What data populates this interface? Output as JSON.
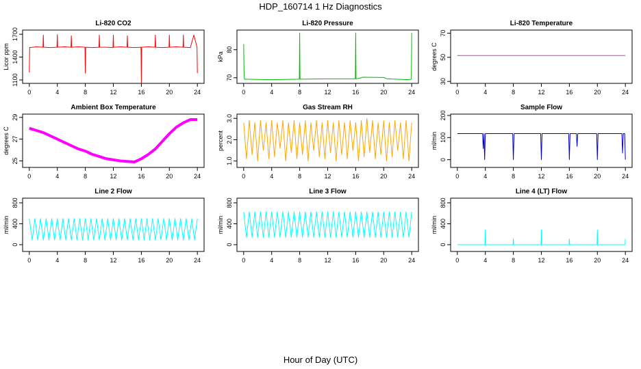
{
  "title": "HDP_160714  1 Hz Diagnostics",
  "xlabel": "Hour of Day (UTC)",
  "chart_data": [
    {
      "type": "line",
      "title": "Li-820 CO2",
      "ylabel": "Licor ppm",
      "color": "#ff0000",
      "xlim": [
        -0.96,
        24.96
      ],
      "xticks": [
        0,
        4,
        8,
        12,
        16,
        20,
        24
      ],
      "ylim": [
        1055,
        1755
      ],
      "yticks": [
        1100,
        1400,
        1700
      ],
      "x": [
        0,
        0.05,
        0.1,
        1,
        1.95,
        2,
        2.05,
        3,
        3.95,
        4,
        4.05,
        5,
        5.95,
        6,
        6.05,
        7,
        7.95,
        8,
        8.05,
        9,
        9.95,
        10,
        10.05,
        11,
        11.95,
        12,
        12.05,
        13,
        13.95,
        14,
        14.05,
        15,
        15.95,
        16,
        16.05,
        17,
        17.95,
        18,
        18.05,
        19,
        19.95,
        20,
        20.05,
        21,
        21.95,
        22,
        22.05,
        23,
        23.5,
        23.95,
        24
      ],
      "values": [
        1200,
        1530,
        1525,
        1535,
        1530,
        1690,
        1530,
        1525,
        1530,
        1695,
        1530,
        1535,
        1530,
        1680,
        1530,
        1535,
        1530,
        1190,
        1530,
        1525,
        1530,
        1690,
        1530,
        1530,
        1525,
        1690,
        1530,
        1535,
        1530,
        1680,
        1530,
        1525,
        1530,
        1060,
        1530,
        1535,
        1530,
        1690,
        1530,
        1525,
        1530,
        1690,
        1530,
        1535,
        1530,
        1690,
        1530,
        1525,
        1690,
        1530,
        1190
      ]
    },
    {
      "type": "line",
      "title": "Li-820 Pressure",
      "ylabel": "kPa",
      "color": "#00bb00",
      "xlim": [
        -0.96,
        24.96
      ],
      "xticks": [
        0,
        4,
        8,
        12,
        16,
        20,
        24
      ],
      "ylim": [
        68,
        87
      ],
      "yticks": [
        70,
        80
      ],
      "x": [
        0,
        0.05,
        0.1,
        0.3,
        4,
        7.95,
        8,
        8.05,
        12,
        15.95,
        16,
        16.05,
        16.5,
        17,
        20,
        20.5,
        23.5,
        23.95,
        24
      ],
      "values": [
        82,
        72,
        69.5,
        69.5,
        69.3,
        69.5,
        86,
        69.5,
        69.6,
        69.6,
        86,
        69.6,
        69.8,
        70.2,
        70.1,
        69.6,
        69.3,
        69.5,
        86
      ]
    },
    {
      "type": "line",
      "title": "Li-820 Temperature",
      "ylabel": "degrees C",
      "color": "#cc33cc",
      "xlim": [
        -0.96,
        24.96
      ],
      "xticks": [
        0,
        4,
        8,
        12,
        16,
        20,
        24
      ],
      "ylim": [
        28.4,
        72.6
      ],
      "yticks": [
        30,
        50,
        70
      ],
      "x": [
        0,
        24
      ],
      "values": [
        51.5,
        51.5
      ]
    },
    {
      "type": "line",
      "title": "Ambient Box Temperature",
      "ylabel": "degrees C",
      "color": "#ff00ff",
      "xlim": [
        -0.96,
        24.96
      ],
      "xticks": [
        0,
        4,
        8,
        12,
        16,
        20,
        24
      ],
      "ylim": [
        24.4,
        29.3
      ],
      "yticks": [
        25,
        27,
        29
      ],
      "x": [
        0,
        1,
        2,
        3,
        4,
        5,
        6,
        7,
        8,
        9,
        10,
        11,
        12,
        13,
        14,
        15,
        16,
        17,
        18,
        19,
        20,
        21,
        22,
        23,
        24
      ],
      "values": [
        28.0,
        27.8,
        27.6,
        27.3,
        27.0,
        26.7,
        26.4,
        26.1,
        25.9,
        25.6,
        25.4,
        25.2,
        25.1,
        25.0,
        24.95,
        24.9,
        25.2,
        25.6,
        26.1,
        26.8,
        27.5,
        28.1,
        28.5,
        28.8,
        28.8
      ]
    },
    {
      "type": "line",
      "title": "Gas Stream RH",
      "ylabel": "percent",
      "color": "#ffa500",
      "xlim": [
        -0.96,
        24.96
      ],
      "xticks": [
        0,
        4,
        8,
        12,
        16,
        20,
        24
      ],
      "ylim": [
        0.7,
        3.2
      ],
      "yticks": [
        {
          "value": 1,
          "label": "1.0"
        },
        {
          "value": 2,
          "label": "2.0"
        },
        {
          "value": 3,
          "label": "3.0"
        }
      ],
      "x": [
        0,
        0.4,
        0.8,
        1.2,
        1.6,
        2,
        2.4,
        2.8,
        3.2,
        3.6,
        4,
        4.4,
        4.8,
        5.2,
        5.6,
        6,
        6.4,
        6.8,
        7.2,
        7.6,
        8,
        8.4,
        8.8,
        9.2,
        9.6,
        10,
        10.4,
        10.8,
        11.2,
        11.6,
        12,
        12.4,
        12.8,
        13.2,
        13.6,
        14,
        14.4,
        14.8,
        15.2,
        15.6,
        16,
        16.4,
        16.8,
        17.2,
        17.6,
        18,
        18.4,
        18.8,
        19.2,
        19.6,
        20,
        20.4,
        20.8,
        21.2,
        21.6,
        22,
        22.4,
        22.8,
        23.2,
        23.6,
        24
      ],
      "values": [
        2.8,
        1.1,
        2.9,
        1.3,
        2.8,
        1.0,
        2.9,
        1.5,
        2.8,
        1.1,
        2.9,
        1.2,
        2.8,
        1.6,
        2.9,
        1.0,
        2.8,
        1.4,
        2.9,
        1.1,
        2.8,
        1.3,
        2.9,
        1.0,
        2.8,
        1.5,
        2.9,
        1.2,
        2.8,
        1.1,
        2.9,
        1.4,
        2.8,
        1.0,
        2.9,
        1.3,
        2.8,
        1.1,
        2.9,
        1.5,
        2.8,
        1.0,
        2.9,
        1.2,
        3.0,
        1.4,
        2.9,
        1.1,
        2.8,
        1.3,
        2.9,
        1.0,
        2.8,
        1.2,
        2.9,
        1.5,
        2.8,
        1.1,
        2.9,
        1.0,
        2.8
      ]
    },
    {
      "type": "line",
      "title": "Sample Flow",
      "ylabel": "ml/min",
      "color": "#0000cc",
      "xlim": [
        -0.96,
        24.96
      ],
      "xticks": [
        0,
        4,
        8,
        12,
        16,
        20,
        24
      ],
      "ylim": [
        -35,
        206
      ],
      "yticks": [
        0,
        100,
        200
      ],
      "x": [
        0,
        3.6,
        3.7,
        3.8,
        3.9,
        4,
        4.1,
        7.9,
        8,
        8.1,
        11.9,
        12,
        12.1,
        15.9,
        16,
        16.1,
        17,
        17.1,
        17.2,
        19.9,
        20,
        20.1,
        23.5,
        23.6,
        23.7,
        23.9,
        24
      ],
      "values": [
        118,
        118,
        50,
        118,
        0,
        118,
        118,
        118,
        0,
        118,
        118,
        0,
        118,
        118,
        0,
        118,
        118,
        60,
        118,
        118,
        0,
        118,
        118,
        30,
        118,
        118,
        0
      ]
    },
    {
      "type": "line",
      "title": "Line 2 Flow",
      "ylabel": "ml/min",
      "color": "#00ffff",
      "xlim": [
        -0.96,
        24.96
      ],
      "xticks": [
        0,
        4,
        8,
        12,
        16,
        20,
        24
      ],
      "ylim": [
        -130,
        890
      ],
      "yticks": [
        0,
        400,
        800
      ],
      "x": [
        0,
        0.4,
        0.8,
        1.2,
        1.6,
        2,
        2.4,
        2.8,
        3.2,
        3.6,
        4,
        4.4,
        4.8,
        5.2,
        5.6,
        6,
        6.4,
        6.8,
        7.2,
        7.6,
        8,
        8.4,
        8.8,
        9.2,
        9.6,
        10,
        10.4,
        10.8,
        11.2,
        11.6,
        12,
        12.4,
        12.8,
        13.2,
        13.6,
        14,
        14.4,
        14.8,
        15.2,
        15.6,
        16,
        16.4,
        16.8,
        17.2,
        17.6,
        18,
        18.4,
        18.8,
        19.2,
        19.6,
        20,
        20.4,
        20.8,
        21.2,
        21.6,
        22,
        22.4,
        22.8,
        23.2,
        23.6,
        24
      ],
      "values": [
        500,
        90,
        500,
        90,
        500,
        90,
        500,
        90,
        500,
        90,
        500,
        90,
        500,
        90,
        500,
        90,
        500,
        90,
        500,
        90,
        500,
        90,
        500,
        90,
        500,
        90,
        500,
        90,
        500,
        90,
        500,
        90,
        500,
        90,
        500,
        90,
        500,
        90,
        500,
        90,
        500,
        90,
        500,
        90,
        500,
        90,
        500,
        90,
        500,
        90,
        500,
        90,
        500,
        90,
        500,
        90,
        500,
        90,
        500,
        90,
        500
      ]
    },
    {
      "type": "line",
      "title": "Line 3 Flow",
      "ylabel": "ml/min",
      "color": "#00ffff",
      "xlim": [
        -0.96,
        24.96
      ],
      "xticks": [
        0,
        4,
        8,
        12,
        16,
        20,
        24
      ],
      "ylim": [
        -130,
        890
      ],
      "yticks": [
        0,
        400,
        800
      ],
      "x": [
        0,
        0.4,
        0.8,
        1.2,
        1.6,
        2,
        2.4,
        2.8,
        3.2,
        3.6,
        4,
        4.4,
        4.8,
        5.2,
        5.6,
        6,
        6.4,
        6.8,
        7.2,
        7.6,
        8,
        8.4,
        8.8,
        9.2,
        9.6,
        10,
        10.4,
        10.8,
        11.2,
        11.6,
        12,
        12.4,
        12.8,
        13.2,
        13.6,
        14,
        14.4,
        14.8,
        15.2,
        15.6,
        16,
        16.4,
        16.8,
        17.2,
        17.6,
        18,
        18.4,
        18.8,
        19.2,
        19.6,
        20,
        20.4,
        20.8,
        21.2,
        21.6,
        22,
        22.4,
        22.8,
        23.2,
        23.6,
        24
      ],
      "values": [
        630,
        140,
        630,
        140,
        630,
        140,
        630,
        140,
        630,
        140,
        630,
        140,
        630,
        140,
        630,
        140,
        630,
        140,
        630,
        140,
        630,
        140,
        630,
        140,
        630,
        140,
        630,
        140,
        630,
        140,
        630,
        140,
        630,
        140,
        630,
        140,
        630,
        140,
        630,
        140,
        630,
        140,
        630,
        140,
        630,
        140,
        630,
        140,
        630,
        140,
        630,
        140,
        630,
        140,
        630,
        140,
        630,
        140,
        630,
        140,
        630
      ]
    },
    {
      "type": "line",
      "title": "Line 4 (LT) Flow",
      "ylabel": "ml/min",
      "color": "#00ffff",
      "xlim": [
        -0.96,
        24.96
      ],
      "xticks": [
        0,
        4,
        8,
        12,
        16,
        20,
        24
      ],
      "ylim": [
        -130,
        890
      ],
      "yticks": [
        0,
        400,
        800
      ],
      "x": [
        0,
        3.95,
        4,
        4.05,
        7.95,
        8,
        8.05,
        11.95,
        12,
        12.05,
        15.95,
        16,
        16.05,
        19.95,
        20,
        20.05,
        23.95,
        24
      ],
      "values": [
        0,
        0,
        280,
        0,
        0,
        110,
        0,
        0,
        280,
        0,
        0,
        110,
        0,
        0,
        280,
        0,
        0,
        110
      ]
    }
  ]
}
